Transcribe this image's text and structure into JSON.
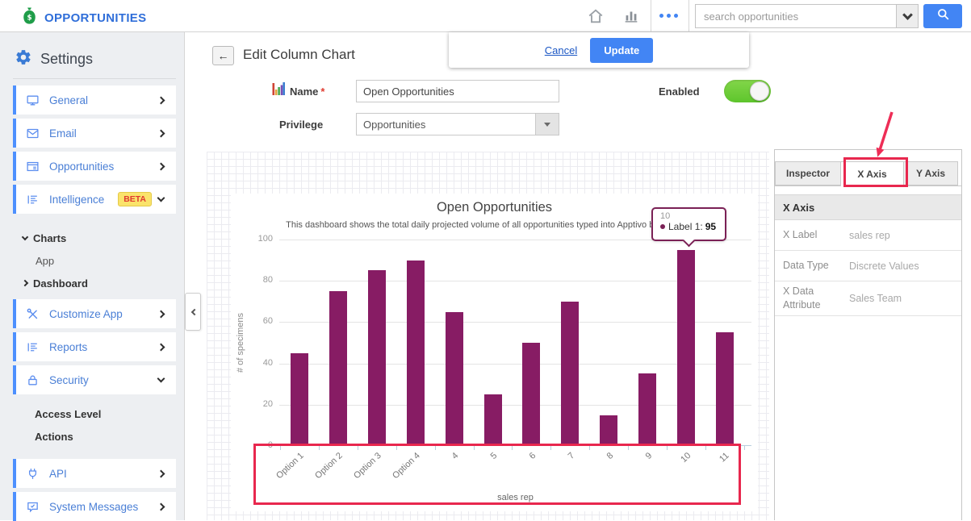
{
  "topbar": {
    "app_title": "OPPORTUNITIES",
    "search_placeholder": "search opportunities"
  },
  "toolbar": {
    "cancel_label": "Cancel",
    "update_label": "Update"
  },
  "page": {
    "title": "Edit Column Chart",
    "back_icon": "←"
  },
  "form": {
    "name_label": "Name",
    "required_mark": "*",
    "name_value": "Open Opportunities",
    "enabled_label": "Enabled",
    "enabled_state": "on",
    "privilege_label": "Privilege",
    "privilege_value": "Opportunities"
  },
  "sidebar": {
    "title": "Settings",
    "sections": [
      {
        "type": "cards",
        "items": [
          {
            "label": "General",
            "icon": "monitor-icon",
            "chevron": "right"
          },
          {
            "label": "Email",
            "icon": "envelope-icon",
            "chevron": "right"
          },
          {
            "label": "Opportunities",
            "icon": "app-window-icon",
            "chevron": "right"
          },
          {
            "label": "Intelligence",
            "icon": "report-icon",
            "badge": "BETA",
            "chevron": "down"
          }
        ]
      },
      {
        "type": "tree",
        "items": [
          {
            "label": "Charts",
            "chevron": "down",
            "bold": true
          },
          {
            "label": "App",
            "indent": true
          },
          {
            "label": "Dashboard",
            "chevron": "right",
            "bold": true
          }
        ]
      },
      {
        "type": "cards",
        "items": [
          {
            "label": "Customize App",
            "icon": "tools-icon",
            "chevron": "right"
          },
          {
            "label": "Reports",
            "icon": "report-icon",
            "chevron": "right"
          },
          {
            "label": "Security",
            "icon": "lock-icon",
            "chevron": "down"
          }
        ]
      },
      {
        "type": "tree",
        "items": [
          {
            "label": "Access Level",
            "bold": true,
            "noarrow": true
          },
          {
            "label": "Actions",
            "bold": true,
            "noarrow": true
          }
        ]
      },
      {
        "type": "cards",
        "items": [
          {
            "label": "API",
            "icon": "plug-icon",
            "chevron": "right"
          },
          {
            "label": "System Messages",
            "icon": "message-icon",
            "chevron": "right"
          }
        ]
      }
    ]
  },
  "chart_data": {
    "type": "bar",
    "title": "Open Opportunities",
    "subtitle": "This dashboard shows the total daily projected volume of all opportunities typed into Apptivo by your team.",
    "categories": [
      "Option 1",
      "Option 2",
      "Option 3",
      "Option 4",
      "4",
      "5",
      "6",
      "7",
      "8",
      "9",
      "10",
      "11"
    ],
    "values": [
      45,
      75,
      85,
      90,
      65,
      25,
      50,
      70,
      15,
      35,
      95,
      55
    ],
    "xlabel": "sales rep",
    "ylabel": "# of specimens",
    "ylim": [
      0,
      100
    ],
    "yticks": [
      0,
      20,
      40,
      60,
      80,
      100
    ],
    "bar_color": "#871c64",
    "grid": true,
    "legend": false
  },
  "tooltip": {
    "category": "10",
    "series_label": "Label 1:",
    "value": "95"
  },
  "inspector_panel": {
    "tabs": [
      "Inspector",
      "X Axis",
      "Y Axis"
    ],
    "active_tab": "X Axis",
    "section_title": "X Axis",
    "rows": [
      {
        "label": "X Label",
        "value": "sales rep"
      },
      {
        "label": "Data Type",
        "value": "Discrete Values"
      },
      {
        "label": "X Data Attribute",
        "value": "Sales Team"
      }
    ]
  },
  "colors": {
    "accent_blue": "#4285f4",
    "bar_purple": "#871c64",
    "annotation_red": "#e8274e",
    "toggle_green": "#70cf35",
    "sidebar_link_blue": "#4a7fd6"
  }
}
